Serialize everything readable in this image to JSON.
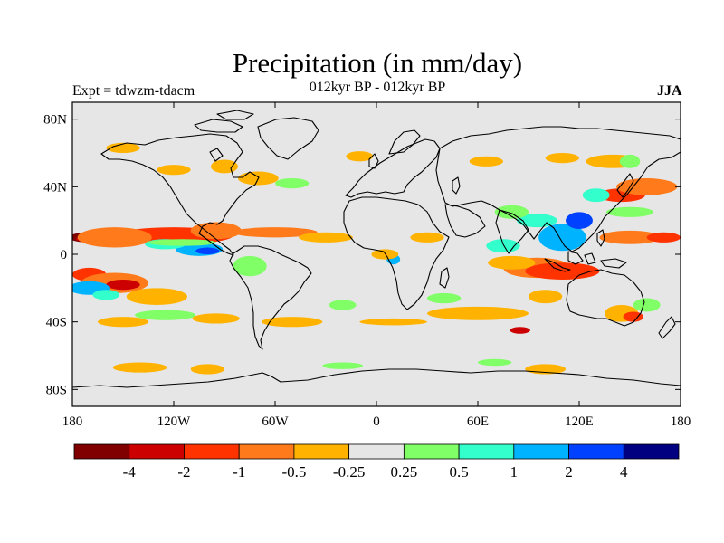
{
  "title": "Precipitation (in mm/day)",
  "subtitle": "012kyr BP - 012kyr BP",
  "experiment": "Expt = tdwzm-tdacm",
  "season": "JJA",
  "map": {
    "projection": "cylindrical-equidistant",
    "lon_range": [
      -180,
      180
    ],
    "lat_range": [
      -90,
      90
    ],
    "ocean_land_background": "#e6e6e6",
    "lat_ticks": [
      {
        "lat": 80,
        "label": "80N"
      },
      {
        "lat": 40,
        "label": "40N"
      },
      {
        "lat": 0,
        "label": "0"
      },
      {
        "lat": -40,
        "label": "40S"
      },
      {
        "lat": -80,
        "label": "80S"
      }
    ],
    "lon_ticks": [
      {
        "lon": -180,
        "label": "180"
      },
      {
        "lon": -120,
        "label": "120W"
      },
      {
        "lon": -60,
        "label": "60W"
      },
      {
        "lon": 0,
        "label": "0"
      },
      {
        "lon": 60,
        "label": "60E"
      },
      {
        "lon": 120,
        "label": "120E"
      },
      {
        "lon": 180,
        "label": "180"
      }
    ]
  },
  "colorbar": {
    "colors": [
      "#800000",
      "#cc0000",
      "#ff3300",
      "#ff7a1a",
      "#ffb300",
      "#e6e6e6",
      "#80ff66",
      "#33ffcc",
      "#00b3ff",
      "#0040ff",
      "#000080"
    ],
    "labels": [
      "-4",
      "-2",
      "-1",
      "-0.5",
      "-0.25",
      "0.25",
      "0.5",
      "1",
      "2",
      "4"
    ]
  },
  "anomaly_patches": [
    {
      "class": 0,
      "lon": -170,
      "lat": 10,
      "rx": 12,
      "ry": 3
    },
    {
      "class": 1,
      "lon": -150,
      "lat": 9,
      "rx": 28,
      "ry": 3
    },
    {
      "class": 2,
      "lon": -120,
      "lat": 11,
      "rx": 35,
      "ry": 5
    },
    {
      "class": 3,
      "lon": -155,
      "lat": 10,
      "rx": 22,
      "ry": 6
    },
    {
      "class": 3,
      "lon": -95,
      "lat": 14,
      "rx": 15,
      "ry": 5
    },
    {
      "class": 3,
      "lon": -60,
      "lat": 13,
      "rx": 25,
      "ry": 3
    },
    {
      "class": 4,
      "lon": -30,
      "lat": 10,
      "rx": 16,
      "ry": 3
    },
    {
      "class": 2,
      "lon": -170,
      "lat": -12,
      "rx": 10,
      "ry": 4
    },
    {
      "class": 3,
      "lon": -155,
      "lat": -17,
      "rx": 20,
      "ry": 6
    },
    {
      "class": 1,
      "lon": -150,
      "lat": -18,
      "rx": 10,
      "ry": 3
    },
    {
      "class": 4,
      "lon": -130,
      "lat": -25,
      "rx": 18,
      "ry": 5
    },
    {
      "class": 8,
      "lon": -170,
      "lat": -20,
      "rx": 12,
      "ry": 4
    },
    {
      "class": 7,
      "lon": -160,
      "lat": -24,
      "rx": 8,
      "ry": 3
    },
    {
      "class": 8,
      "lon": -105,
      "lat": 3,
      "rx": 14,
      "ry": 4
    },
    {
      "class": 9,
      "lon": -100,
      "lat": 2,
      "rx": 7,
      "ry": 2
    },
    {
      "class": 7,
      "lon": -125,
      "lat": 6,
      "rx": 12,
      "ry": 3
    },
    {
      "class": 6,
      "lon": -115,
      "lat": 7,
      "rx": 20,
      "ry": 2
    },
    {
      "class": 6,
      "lon": -75,
      "lat": -7,
      "rx": 10,
      "ry": 6
    },
    {
      "class": 6,
      "lon": -125,
      "lat": -36,
      "rx": 18,
      "ry": 3
    },
    {
      "class": 4,
      "lon": -150,
      "lat": -40,
      "rx": 15,
      "ry": 3
    },
    {
      "class": 4,
      "lon": -95,
      "lat": -38,
      "rx": 14,
      "ry": 3
    },
    {
      "class": 4,
      "lon": -50,
      "lat": -40,
      "rx": 18,
      "ry": 3
    },
    {
      "class": 4,
      "lon": -140,
      "lat": -67,
      "rx": 16,
      "ry": 3
    },
    {
      "class": 4,
      "lon": -100,
      "lat": -68,
      "rx": 10,
      "ry": 3
    },
    {
      "class": 6,
      "lon": -20,
      "lat": -66,
      "rx": 12,
      "ry": 2
    },
    {
      "class": 6,
      "lon": 70,
      "lat": -64,
      "rx": 10,
      "ry": 2
    },
    {
      "class": 4,
      "lon": 100,
      "lat": -68,
      "rx": 12,
      "ry": 3
    },
    {
      "class": 4,
      "lon": 60,
      "lat": -35,
      "rx": 30,
      "ry": 4
    },
    {
      "class": 4,
      "lon": 10,
      "lat": -40,
      "rx": 20,
      "ry": 2
    },
    {
      "class": 6,
      "lon": -20,
      "lat": -30,
      "rx": 8,
      "ry": 3
    },
    {
      "class": 6,
      "lon": 40,
      "lat": -26,
      "rx": 10,
      "ry": 3
    },
    {
      "class": 4,
      "lon": 100,
      "lat": -25,
      "rx": 10,
      "ry": 4
    },
    {
      "class": 3,
      "lon": 95,
      "lat": -8,
      "rx": 20,
      "ry": 6
    },
    {
      "class": 2,
      "lon": 110,
      "lat": -10,
      "rx": 22,
      "ry": 5
    },
    {
      "class": 4,
      "lon": 80,
      "lat": -5,
      "rx": 14,
      "ry": 4
    },
    {
      "class": 7,
      "lon": 75,
      "lat": 5,
      "rx": 10,
      "ry": 4
    },
    {
      "class": 8,
      "lon": 110,
      "lat": 10,
      "rx": 14,
      "ry": 8
    },
    {
      "class": 9,
      "lon": 120,
      "lat": 20,
      "rx": 8,
      "ry": 5
    },
    {
      "class": 7,
      "lon": 95,
      "lat": 20,
      "rx": 12,
      "ry": 4
    },
    {
      "class": 6,
      "lon": 80,
      "lat": 25,
      "rx": 10,
      "ry": 4
    },
    {
      "class": 2,
      "lon": 145,
      "lat": 35,
      "rx": 14,
      "ry": 4
    },
    {
      "class": 3,
      "lon": 160,
      "lat": 40,
      "rx": 18,
      "ry": 5
    },
    {
      "class": 3,
      "lon": 150,
      "lat": 10,
      "rx": 18,
      "ry": 4
    },
    {
      "class": 2,
      "lon": 170,
      "lat": 10,
      "rx": 10,
      "ry": 3
    },
    {
      "class": 6,
      "lon": 150,
      "lat": 25,
      "rx": 14,
      "ry": 3
    },
    {
      "class": 7,
      "lon": 130,
      "lat": 35,
      "rx": 8,
      "ry": 4
    },
    {
      "class": 4,
      "lon": 140,
      "lat": 55,
      "rx": 16,
      "ry": 4
    },
    {
      "class": 4,
      "lon": 110,
      "lat": 57,
      "rx": 10,
      "ry": 3
    },
    {
      "class": 6,
      "lon": 150,
      "lat": 55,
      "rx": 6,
      "ry": 4
    },
    {
      "class": 4,
      "lon": 65,
      "lat": 55,
      "rx": 10,
      "ry": 3
    },
    {
      "class": 4,
      "lon": -10,
      "lat": 58,
      "rx": 8,
      "ry": 3
    },
    {
      "class": 4,
      "lon": -70,
      "lat": 45,
      "rx": 12,
      "ry": 4
    },
    {
      "class": 6,
      "lon": -50,
      "lat": 42,
      "rx": 10,
      "ry": 3
    },
    {
      "class": 4,
      "lon": -90,
      "lat": 52,
      "rx": 8,
      "ry": 4
    },
    {
      "class": 4,
      "lon": -120,
      "lat": 50,
      "rx": 10,
      "ry": 3
    },
    {
      "class": 4,
      "lon": -150,
      "lat": 63,
      "rx": 10,
      "ry": 3
    },
    {
      "class": 8,
      "lon": 10,
      "lat": -3,
      "rx": 4,
      "ry": 3
    },
    {
      "class": 4,
      "lon": 5,
      "lat": 0,
      "rx": 8,
      "ry": 3
    },
    {
      "class": 4,
      "lon": 30,
      "lat": 10,
      "rx": 10,
      "ry": 3
    },
    {
      "class": 4,
      "lon": 145,
      "lat": -35,
      "rx": 10,
      "ry": 5
    },
    {
      "class": 2,
      "lon": 152,
      "lat": -37,
      "rx": 6,
      "ry": 3
    },
    {
      "class": 6,
      "lon": 160,
      "lat": -30,
      "rx": 8,
      "ry": 4
    },
    {
      "class": 1,
      "lon": 85,
      "lat": -45,
      "rx": 6,
      "ry": 2
    }
  ]
}
